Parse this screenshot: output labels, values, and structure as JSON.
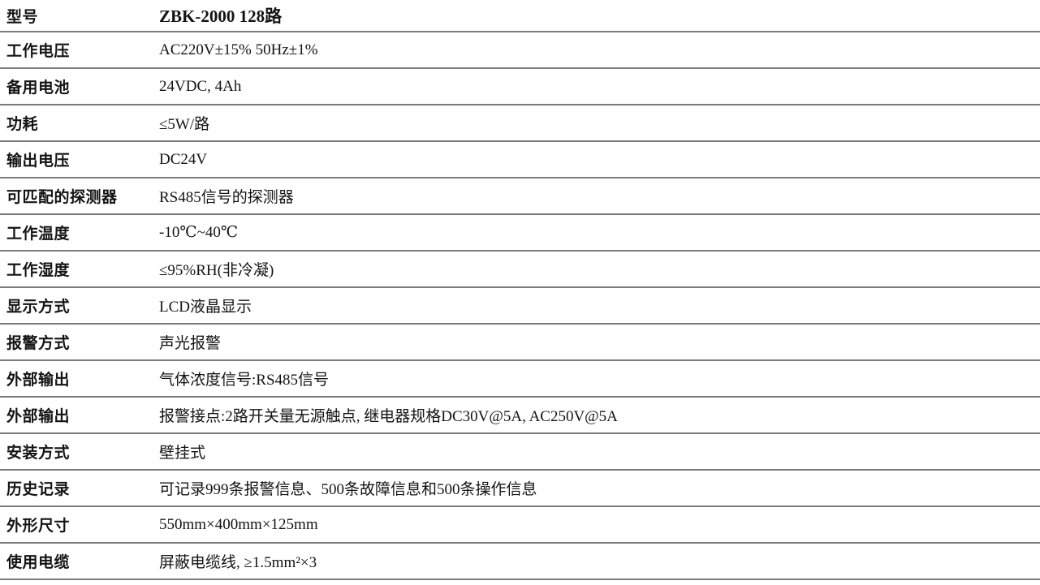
{
  "table": {
    "colors": {
      "background": "#ffffff",
      "text": "#141414",
      "divider": "#7b7b7b"
    },
    "rows": [
      {
        "label": "型号",
        "value": "ZBK-2000 128路",
        "value_bold": true
      },
      {
        "label": "工作电压",
        "value": "AC220V±15% 50Hz±1%",
        "value_bold": false
      },
      {
        "label": "备用电池",
        "value": "24VDC, 4Ah",
        "value_bold": false
      },
      {
        "label": "功耗",
        "value": "≤5W/路",
        "value_bold": false
      },
      {
        "label": "输出电压",
        "value": "DC24V",
        "value_bold": false
      },
      {
        "label": "可匹配的探测器",
        "value": "RS485信号的探测器",
        "value_bold": false
      },
      {
        "label": "工作温度",
        "value": "-10℃~40℃",
        "value_bold": false
      },
      {
        "label": "工作湿度",
        "value": "≤95%RH(非冷凝)",
        "value_bold": false
      },
      {
        "label": "显示方式",
        "value": "LCD液晶显示",
        "value_bold": false
      },
      {
        "label": "报警方式",
        "value": "声光报警",
        "value_bold": false
      },
      {
        "label": "外部输出",
        "value": "气体浓度信号:RS485信号",
        "value_bold": false
      },
      {
        "label": "外部输出",
        "value": "报警接点:2路开关量无源触点, 继电器规格DC30V@5A, AC250V@5A",
        "value_bold": false
      },
      {
        "label": "安装方式",
        "value": "壁挂式",
        "value_bold": false
      },
      {
        "label": "历史记录",
        "value": "可记录999条报警信息、500条故障信息和500条操作信息",
        "value_bold": false
      },
      {
        "label": "外形尺寸",
        "value": "550mm×400mm×125mm",
        "value_bold": false
      },
      {
        "label": "使用电缆",
        "value": "屏蔽电缆线, ≥1.5mm²×3",
        "value_bold": false
      }
    ]
  }
}
